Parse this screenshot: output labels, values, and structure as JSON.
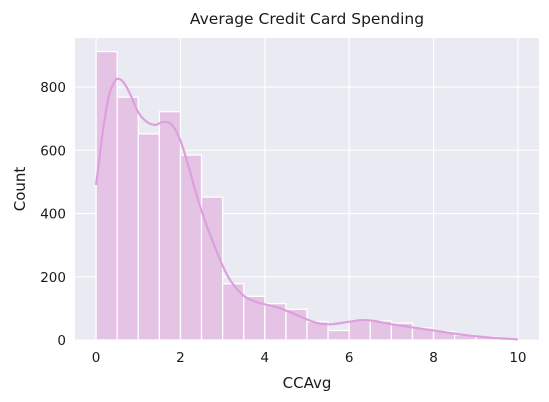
{
  "chart_data": {
    "type": "bar",
    "subtype": "histogram-with-kde",
    "title": "Average Credit Card Spending",
    "xlabel": "CCAvg",
    "ylabel": "Count",
    "xlim": [
      -0.5,
      10.5
    ],
    "ylim": [
      0,
      955
    ],
    "xticks": [
      0,
      2,
      4,
      6,
      8,
      10
    ],
    "yticks": [
      0,
      200,
      400,
      600,
      800
    ],
    "grid": true,
    "bin_width": 0.5,
    "bins": [
      {
        "x0": 0.0,
        "x1": 0.5,
        "count": 912
      },
      {
        "x0": 0.5,
        "x1": 1.0,
        "count": 768
      },
      {
        "x0": 1.0,
        "x1": 1.5,
        "count": 652
      },
      {
        "x0": 1.5,
        "x1": 2.0,
        "count": 722
      },
      {
        "x0": 2.0,
        "x1": 2.5,
        "count": 585
      },
      {
        "x0": 2.5,
        "x1": 3.0,
        "count": 452
      },
      {
        "x0": 3.0,
        "x1": 3.5,
        "count": 178
      },
      {
        "x0": 3.5,
        "x1": 4.0,
        "count": 138
      },
      {
        "x0": 4.0,
        "x1": 4.5,
        "count": 115
      },
      {
        "x0": 4.5,
        "x1": 5.0,
        "count": 97
      },
      {
        "x0": 5.0,
        "x1": 5.5,
        "count": 58
      },
      {
        "x0": 5.5,
        "x1": 6.0,
        "count": 30
      },
      {
        "x0": 6.0,
        "x1": 6.5,
        "count": 62
      },
      {
        "x0": 6.5,
        "x1": 7.0,
        "count": 60
      },
      {
        "x0": 7.0,
        "x1": 7.5,
        "count": 53
      },
      {
        "x0": 7.5,
        "x1": 8.0,
        "count": 38
      },
      {
        "x0": 8.0,
        "x1": 8.5,
        "count": 27
      },
      {
        "x0": 8.5,
        "x1": 9.0,
        "count": 16
      },
      {
        "x0": 9.0,
        "x1": 9.5,
        "count": 10
      },
      {
        "x0": 9.5,
        "x1": 10.0,
        "count": 3
      }
    ],
    "kde": {
      "x": [
        0.0,
        0.15,
        0.3,
        0.45,
        0.55,
        0.65,
        0.8,
        1.0,
        1.2,
        1.4,
        1.6,
        1.8,
        2.0,
        2.2,
        2.4,
        2.6,
        2.8,
        3.0,
        3.2,
        3.5,
        3.8,
        4.0,
        4.3,
        4.6,
        5.0,
        5.3,
        5.6,
        6.0,
        6.3,
        6.6,
        7.0,
        7.5,
        8.0,
        8.5,
        9.0,
        9.5,
        10.0
      ],
      "y": [
        490,
        650,
        770,
        820,
        825,
        815,
        780,
        720,
        690,
        680,
        690,
        680,
        630,
        545,
        450,
        370,
        300,
        235,
        185,
        140,
        120,
        113,
        103,
        88,
        65,
        52,
        50,
        58,
        63,
        60,
        50,
        40,
        30,
        20,
        12,
        6,
        2
      ]
    },
    "colors": {
      "bar_fill": "#e5c3e5",
      "kde_line": "#dda0dd",
      "plot_background": "#eaeaf2",
      "grid": "#ffffff"
    }
  }
}
